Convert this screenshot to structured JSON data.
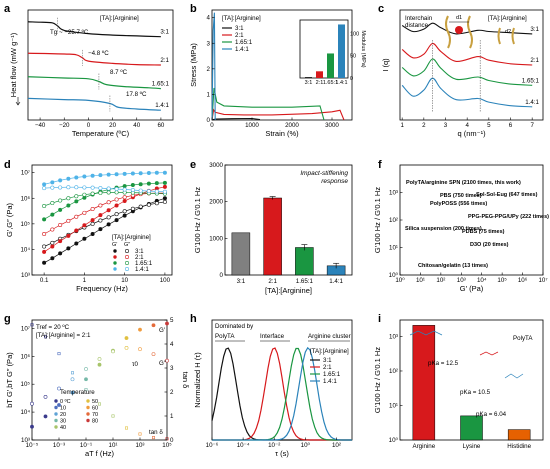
{
  "colors": {
    "black": "#111111",
    "red": "#d7191c",
    "green": "#1a9641",
    "blue": "#2b83ba",
    "purple": "#7b3294",
    "orange": "#e66101",
    "pink": "#d6604d",
    "lightblue": "#4fb3e8",
    "olive": "#8c8c1a",
    "gray": "#808080",
    "darkgreen": "#1b7837",
    "navy": "#3a3a8c"
  },
  "panels": {
    "a": {
      "letter": "a",
      "xlabel": "Temperature (ºC)",
      "ylabel": "Heat flow (mW g⁻¹)",
      "header": "[TA]:[Arginine]",
      "xticks": [
        "−40",
        "−20",
        "0",
        "20",
        "40",
        "60"
      ],
      "tg_labels": [
        "Tg ~ −25.7 ºC",
        "−4.8 ºC",
        "8.7 ºC",
        "17.8 ºC"
      ],
      "ratios": [
        "3:1",
        "2:1",
        "1.65:1",
        "1.4:1"
      ]
    },
    "b": {
      "letter": "b",
      "xlabel": "Strain (%)",
      "ylabel": "Stress (MPa)",
      "header": "[TA]:[Arginine]",
      "xticks": [
        "0",
        "1000",
        "2000",
        "3000"
      ],
      "yticks": [
        "0",
        "1",
        "2",
        "3",
        "4"
      ],
      "legend": [
        "3:1",
        "2:1",
        "1.65:1",
        "1.4:1"
      ],
      "inset_ylabel": "Modulus (MPa)",
      "inset_yticks": [
        "0",
        "50",
        "100"
      ],
      "inset_xticks": [
        "3:1",
        "2:1",
        "1.65:1",
        "1.4:1"
      ]
    },
    "c": {
      "letter": "c",
      "xlabel": "q (nm⁻¹)",
      "ylabel": "I (q)",
      "header": "[TA]:[Arginine]",
      "annotation": "Interchain distance",
      "d1": "d1",
      "d2": "d2",
      "xticks": [
        "1",
        "2",
        "3",
        "4",
        "5",
        "6",
        "7"
      ],
      "ratios": [
        "3:1",
        "2:1",
        "1.65:1",
        "1.4:1"
      ]
    },
    "d": {
      "letter": "d",
      "xlabel": "Frequency (Hz)",
      "ylabel": "G′,G″ (Pa)",
      "header": "[TA]:[Arginine]",
      "gp": "G′",
      "gpp": "G″",
      "xticks": [
        "0.1",
        "1",
        "10",
        "100"
      ],
      "yticks": [
        "10³",
        "10⁴",
        "10⁵",
        "10⁶",
        "10⁷"
      ],
      "legend": [
        "3:1",
        "2:1",
        "1.65:1",
        "1.4:1"
      ]
    },
    "e": {
      "letter": "e",
      "title": "Impact-stiffening response",
      "ylabel": "G′100 Hz / G′0.1 Hz",
      "xlabel": "[TA]:[Arginine]",
      "yticks": [
        "0",
        "1000",
        "2000",
        "3000"
      ]
    },
    "f": {
      "letter": "f",
      "xlabel": "G′ (Pa)",
      "ylabel": "G′100 Hz / G′0.1 Hz",
      "xticks": [
        "10⁰",
        "10¹",
        "10²",
        "10³",
        "10⁴",
        "10⁵",
        "10⁶",
        "10⁷"
      ],
      "yticks": [
        "10⁰",
        "10¹",
        "10²",
        "10³"
      ]
    },
    "g": {
      "letter": "g",
      "xlabel": "aT f (Hz)",
      "ylabel": "bT G′,bT G″ (Pa)",
      "ylabel2": "tan δ",
      "tref": "Tref = 20 ºC",
      "ratio": "[TA]:[Arginine] = 2:1",
      "gp": "G′",
      "gpp": "G″",
      "tau": "τ0",
      "tan": "tan δ",
      "legend_title": "Temperature",
      "legend": [
        "0 ºC",
        "10",
        "20",
        "30",
        "40",
        "50",
        "60",
        "70",
        "80"
      ],
      "xticks": [
        "10⁻⁵",
        "10⁻³",
        "10⁻¹",
        "10¹",
        "10³",
        "10⁵"
      ],
      "yticks": [
        "10³",
        "10⁴",
        "10⁵",
        "10⁶",
        "10⁷"
      ],
      "y2ticks": [
        "0",
        "1",
        "2",
        "3",
        "4",
        "5"
      ]
    },
    "h": {
      "letter": "h",
      "xlabel": "τ (s)",
      "ylabel": "Normalized H (τ)",
      "title": "Dominated by",
      "regions": [
        "PolyTA",
        "Interface",
        "Arginine cluster"
      ],
      "header": "[TA]:[Arginine]",
      "legend": [
        "3:1",
        "2:1",
        "1.65:1",
        "1.4:1"
      ],
      "xticks": [
        "10⁻⁶",
        "10⁻⁴",
        "10⁻²",
        "10⁰",
        "10²"
      ]
    },
    "i": {
      "letter": "i",
      "ylabel": "G′100 Hz / G′0.1 Hz",
      "polyta": "PolyTA",
      "pka": [
        "pKa = 12.5",
        "pKa = 10.5",
        "pKa = 6.04"
      ],
      "yticks": [
        "10⁰",
        "10¹",
        "10²",
        "10³"
      ]
    }
  },
  "chart_data": [
    {
      "panel": "a",
      "type": "line",
      "series": [
        {
          "name": "3:1",
          "tg": -25.7,
          "x": [
            -50,
            -40,
            -30,
            -25.7,
            -20,
            0,
            20,
            40,
            60
          ],
          "y": [
            0.1,
            0.09,
            0.075,
            0.0,
            -0.12,
            -0.2,
            -0.24,
            -0.26,
            -0.28
          ]
        },
        {
          "name": "2:1",
          "tg": -4.8,
          "x": [
            -50,
            -20,
            -10,
            -4.8,
            0,
            20,
            40,
            60
          ],
          "y": [
            -0.7,
            -0.72,
            -0.74,
            -0.82,
            -0.9,
            -0.96,
            -0.99,
            -1.0
          ]
        },
        {
          "name": "1.65:1",
          "tg": 8.7,
          "x": [
            -50,
            -20,
            0,
            8.7,
            15,
            30,
            50,
            60
          ],
          "y": [
            -1.3,
            -1.33,
            -1.35,
            -1.42,
            -1.5,
            -1.55,
            -1.58,
            -1.6
          ]
        },
        {
          "name": "1.4:1",
          "tg": 17.8,
          "x": [
            -50,
            -20,
            0,
            17.8,
            25,
            40,
            60
          ],
          "y": [
            -1.85,
            -1.88,
            -1.9,
            -1.98,
            -2.08,
            -2.12,
            -2.15
          ]
        }
      ]
    },
    {
      "panel": "b",
      "type": "line",
      "xlim": [
        0,
        3500
      ],
      "ylim": [
        0,
        4.3
      ],
      "series": [
        {
          "name": "3:1",
          "x": [
            0,
            30,
            100,
            500,
            1000,
            1200
          ],
          "y": [
            0,
            0.02,
            0.04,
            0.05,
            0.06,
            0.02
          ]
        },
        {
          "name": "2:1",
          "x": [
            0,
            40,
            80,
            300,
            800,
            1500,
            2500,
            3000,
            3200,
            3300
          ],
          "y": [
            0,
            0.4,
            0.3,
            0.22,
            0.2,
            0.2,
            0.25,
            0.32,
            0.38,
            0
          ]
        },
        {
          "name": "1.65:1",
          "x": [
            0,
            50,
            120,
            300,
            1000,
            2000,
            2700,
            2800
          ],
          "y": [
            0,
            1.25,
            0.7,
            0.55,
            0.5,
            0.5,
            0.55,
            0
          ]
        },
        {
          "name": "1.4:1",
          "x": [
            0,
            30,
            60,
            80
          ],
          "y": [
            0,
            3.5,
            4.2,
            0
          ]
        }
      ],
      "inset": {
        "type": "bar",
        "categories": [
          "3:1",
          "2:1",
          "1.65:1",
          "1.4:1"
        ],
        "values": [
          2,
          15,
          55,
          120
        ],
        "ylim": [
          0,
          130
        ]
      }
    },
    {
      "panel": "c",
      "type": "line",
      "series": [
        {
          "name": "3:1",
          "x": [
            1,
            1.5,
            2,
            2.4,
            2.8,
            3.5,
            4.5,
            5,
            6,
            7
          ],
          "y": [
            3.95,
            3.7,
            3.8,
            4.05,
            3.85,
            3.6,
            3.75,
            3.7,
            3.65,
            3.6
          ]
        },
        {
          "name": "2:1",
          "x": [
            1,
            1.5,
            2,
            2.4,
            2.8,
            3.5,
            4.5,
            5,
            6,
            7
          ],
          "y": [
            2.95,
            2.6,
            2.75,
            3.2,
            2.85,
            2.45,
            2.65,
            2.5,
            2.35,
            2.3
          ]
        },
        {
          "name": "1.65:1",
          "x": [
            1,
            1.5,
            2,
            2.4,
            2.8,
            3.5,
            4.5,
            5,
            6,
            7
          ],
          "y": [
            2.2,
            1.85,
            2.05,
            2.55,
            2.15,
            1.7,
            1.8,
            1.65,
            1.5,
            1.45
          ]
        },
        {
          "name": "1.4:1",
          "x": [
            1,
            1.5,
            2,
            2.4,
            2.8,
            3.5,
            4.5,
            5,
            6,
            7
          ],
          "y": [
            1.45,
            1.0,
            1.25,
            1.75,
            1.3,
            0.85,
            0.9,
            0.75,
            0.6,
            0.55
          ]
        }
      ]
    },
    {
      "panel": "d",
      "type": "line",
      "xscale": "log",
      "yscale": "log",
      "xlim": [
        0.05,
        150
      ],
      "ylim": [
        1000,
        20000000
      ],
      "x": [
        0.1,
        0.16,
        0.25,
        0.4,
        0.63,
        1,
        1.6,
        2.5,
        4,
        6.3,
        10,
        16,
        25,
        40,
        63,
        100
      ],
      "series": [
        {
          "name": "3:1 G′",
          "y": [
            3000,
            4500,
            7000,
            11000,
            17000,
            26000,
            40000,
            62000,
            95000,
            140000,
            210000,
            310000,
            440000,
            600000,
            790000,
            1000000
          ]
        },
        {
          "name": "3:1 G″",
          "y": [
            13000,
            18000,
            26000,
            37000,
            52000,
            72000,
            100000,
            135000,
            180000,
            240000,
            310000,
            390000,
            470000,
            560000,
            640000,
            720000
          ]
        },
        {
          "name": "2:1 G′",
          "y": [
            8000,
            13000,
            21000,
            34000,
            55000,
            88000,
            140000,
            220000,
            340000,
            520000,
            780000,
            1100000,
            1500000,
            1950000,
            2400000,
            2800000
          ]
        },
        {
          "name": "2:1 G″",
          "y": [
            40000,
            60000,
            90000,
            130000,
            190000,
            270000,
            380000,
            520000,
            700000,
            900000,
            1100000,
            1300000,
            1450000,
            1550000,
            1600000,
            1600000
          ]
        },
        {
          "name": "1.65:1 G′",
          "y": [
            150000,
            230000,
            350000,
            520000,
            760000,
            1050000,
            1400000,
            1800000,
            2200000,
            2600000,
            3000000,
            3300000,
            3550000,
            3750000,
            3900000,
            4000000
          ]
        },
        {
          "name": "1.65:1 G″",
          "y": [
            500000,
            650000,
            820000,
            1000000,
            1200000,
            1380000,
            1520000,
            1620000,
            1680000,
            1700000,
            1690000,
            1660000,
            1620000,
            1580000,
            1540000,
            1500000
          ]
        },
        {
          "name": "1.4:1 G′",
          "y": [
            3500000,
            4200000,
            5000000,
            5800000,
            6500000,
            7100000,
            7600000,
            8000000,
            8400000,
            8700000,
            9000000,
            9300000,
            9500000,
            9700000,
            9900000,
            10000000
          ]
        },
        {
          "name": "1.4:1 G″",
          "y": [
            2500000,
            2600000,
            2650000,
            2700000,
            2700000,
            2650000,
            2600000,
            2500000,
            2400000,
            2300000,
            2200000,
            2100000,
            2000000,
            1900000,
            1850000,
            1800000
          ]
        }
      ]
    },
    {
      "panel": "e",
      "type": "bar",
      "categories": [
        "3:1",
        "2:1",
        "1.65:1",
        "1.4:1"
      ],
      "values": [
        1150,
        2100,
        750,
        250
      ],
      "errors": [
        0,
        40,
        80,
        70
      ],
      "ylim": [
        0,
        3000
      ]
    },
    {
      "panel": "f",
      "type": "scatter",
      "xscale": "log",
      "yscale": "log",
      "xlim": [
        1,
        10000000
      ],
      "ylim": [
        1,
        10000
      ],
      "points": [
        {
          "label": "PolyTA/arginine SPN (2100 times, this work)",
          "x": 300,
          "y": 2100,
          "marker": "star"
        },
        {
          "label": "Sol-Sol-Eug (647 times)",
          "x": 5000000,
          "y": 647
        },
        {
          "label": "PBS (750 times)",
          "x": 20000,
          "y": 750
        },
        {
          "label": "PolyPOSS (556 times)",
          "x": 8000,
          "y": 556
        },
        {
          "label": "PPG-PEG-PPG/UPy (222 times)",
          "x": 10000,
          "y": 222
        },
        {
          "label": "Silica suspension (200 times)",
          "x": 10,
          "y": 200
        },
        {
          "label": "PDBS (75 times)",
          "x": 50000,
          "y": 75
        },
        {
          "label": "D3O (20 times)",
          "x": 200000,
          "y": 20
        },
        {
          "label": "Chitosan/gelatin (13 times)",
          "x": 3000,
          "y": 13
        }
      ]
    },
    {
      "panel": "g",
      "type": "line",
      "xscale": "log",
      "yscale": "log",
      "xlim": [
        1e-05,
        100000
      ],
      "ylim": [
        1000,
        20000000
      ],
      "y2lim": [
        0,
        5
      ],
      "temperatures": [
        0,
        10,
        20,
        30,
        40,
        50,
        60,
        70,
        80
      ],
      "series": [
        {
          "name": "G′",
          "x": [
            1e-05,
            0.0001,
            0.001,
            0.01,
            0.1,
            1,
            10,
            100,
            1000,
            10000,
            100000
          ],
          "y": [
            3000,
            7000,
            18000,
            50000,
            150000,
            500000,
            1600000,
            4500000,
            9000000,
            13000000,
            15000000
          ]
        },
        {
          "name": "G″",
          "x": [
            1e-05,
            0.0001,
            0.001,
            0.01,
            0.1,
            1,
            10,
            100,
            1000,
            10000,
            100000
          ],
          "y": [
            20000,
            35000,
            70000,
            150000,
            350000,
            800000,
            1500000,
            2000000,
            1800000,
            1200000,
            700000
          ]
        },
        {
          "name": "tan δ",
          "x": [
            1e-05,
            0.0001,
            0.001,
            0.01,
            0.1,
            1,
            10,
            100,
            1000,
            10000,
            100000
          ],
          "y": [
            4.8,
            4.3,
            3.6,
            2.8,
            2.1,
            1.5,
            1.0,
            0.5,
            0.25,
            0.1,
            0.05
          ]
        }
      ]
    },
    {
      "panel": "h",
      "type": "line",
      "xscale": "log",
      "xlim": [
        1e-06,
        1000
      ],
      "ylim": [
        0,
        1.1
      ],
      "series": [
        {
          "name": "3:1",
          "peak": 1e-05
        },
        {
          "name": "2:1",
          "peak": 0.01
        },
        {
          "name": "1.65:1",
          "peak": 0.3
        },
        {
          "name": "1.4:1",
          "peak": 1.5
        }
      ]
    },
    {
      "panel": "i",
      "type": "bar",
      "yscale": "log",
      "categories": [
        "Arginine",
        "Lysine",
        "Histidine"
      ],
      "values": [
        2100,
        5,
        2
      ],
      "ylim": [
        1,
        3000
      ]
    }
  ]
}
